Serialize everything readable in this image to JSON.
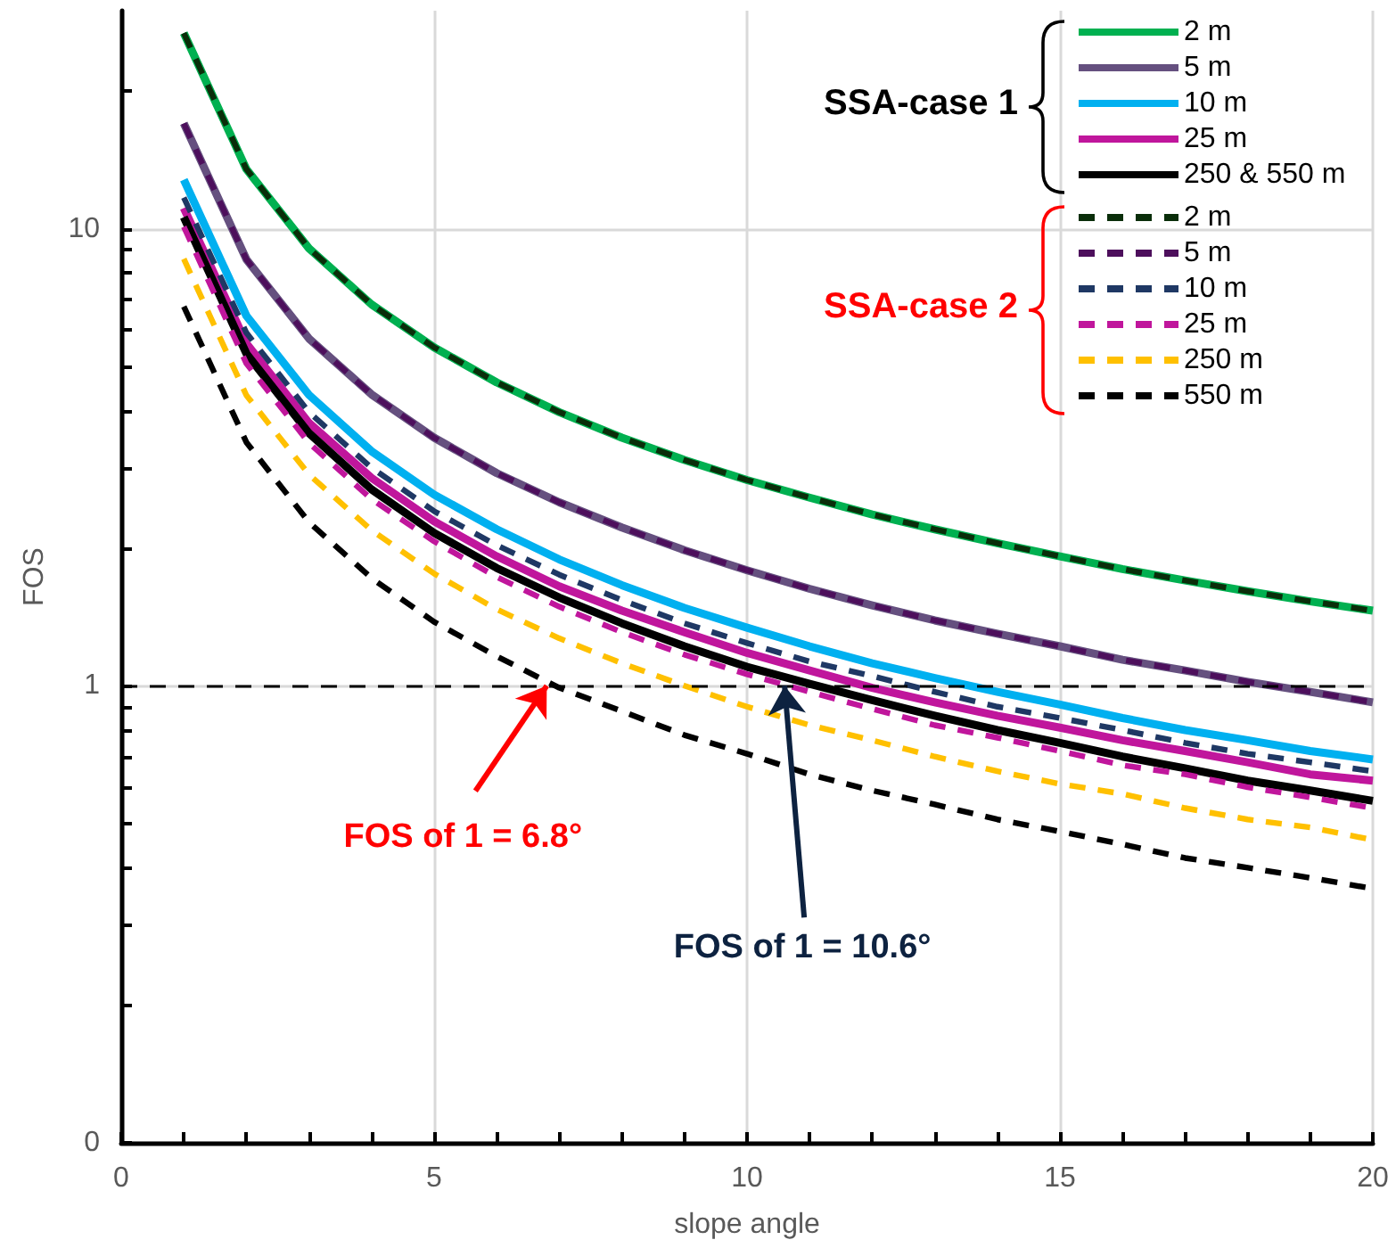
{
  "chart_data": {
    "type": "line",
    "xlabel": "slope angle",
    "ylabel": "FOS",
    "x": [
      1,
      2,
      3,
      4,
      5,
      6,
      7,
      8,
      9,
      10,
      11,
      12,
      13,
      14,
      15,
      16,
      17,
      18,
      19,
      20
    ],
    "series": [
      {
        "name": "2 m",
        "color": "#00b050",
        "line_style": "solid",
        "values": [
          26.8,
          13.5,
          9.06,
          6.83,
          5.5,
          4.61,
          3.97,
          3.49,
          3.12,
          2.82,
          2.58,
          2.37,
          2.2,
          2.05,
          1.92,
          1.8,
          1.7,
          1.61,
          1.53,
          1.46
        ]
      },
      {
        "name": "5 m",
        "color": "#65507f",
        "line_style": "solid",
        "values": [
          17,
          8.57,
          5.75,
          4.34,
          3.49,
          2.92,
          2.52,
          2.22,
          1.98,
          1.79,
          1.63,
          1.5,
          1.39,
          1.3,
          1.22,
          1.14,
          1.08,
          1.02,
          0.97,
          0.92
        ]
      },
      {
        "name": "10 m",
        "color": "#00b0f0",
        "line_style": "solid",
        "values": [
          12.8,
          6.45,
          4.33,
          3.26,
          2.62,
          2.2,
          1.89,
          1.66,
          1.48,
          1.34,
          1.22,
          1.12,
          1.04,
          0.97,
          0.91,
          0.85,
          0.8,
          0.76,
          0.72,
          0.69
        ]
      },
      {
        "name": "25 m",
        "color": "#c0169c",
        "line_style": "solid",
        "values": [
          11.1,
          5.61,
          3.76,
          2.85,
          2.29,
          1.92,
          1.65,
          1.46,
          1.31,
          1.18,
          1.08,
          0.99,
          0.92,
          0.86,
          0.81,
          0.76,
          0.72,
          0.68,
          0.64,
          0.62
        ]
      },
      {
        "name": "250 & 550 m",
        "color": "#000000",
        "line_style": "solid",
        "values": [
          10.6,
          5.33,
          3.57,
          2.69,
          2.16,
          1.81,
          1.56,
          1.37,
          1.22,
          1.1,
          1.01,
          0.93,
          0.86,
          0.8,
          0.75,
          0.7,
          0.66,
          0.62,
          0.59,
          0.56
        ]
      },
      {
        "name": "2 m",
        "color": "#0a2e0a",
        "line_style": "dashed",
        "values": [
          26.8,
          13.5,
          9.06,
          6.83,
          5.5,
          4.61,
          3.97,
          3.49,
          3.12,
          2.82,
          2.58,
          2.37,
          2.2,
          2.05,
          1.92,
          1.8,
          1.7,
          1.61,
          1.53,
          1.46
        ]
      },
      {
        "name": "5 m",
        "color": "#4d0f5c",
        "line_style": "dashed",
        "values": [
          17,
          8.57,
          5.75,
          4.34,
          3.49,
          2.92,
          2.52,
          2.22,
          1.98,
          1.79,
          1.63,
          1.5,
          1.39,
          1.3,
          1.22,
          1.14,
          1.08,
          1.02,
          0.97,
          0.92
        ]
      },
      {
        "name": "10 m",
        "color": "#1f3864",
        "line_style": "dashed",
        "values": [
          11.7,
          5.92,
          3.97,
          3,
          2.41,
          2.03,
          1.75,
          1.54,
          1.37,
          1.24,
          1.13,
          1.05,
          0.97,
          0.9,
          0.85,
          0.8,
          0.75,
          0.71,
          0.68,
          0.65
        ]
      },
      {
        "name": "25 m",
        "color": "#c0169c",
        "line_style": "dashed",
        "values": [
          10.1,
          5.07,
          3.4,
          2.56,
          2.07,
          1.73,
          1.49,
          1.31,
          1.17,
          1.06,
          0.97,
          0.89,
          0.82,
          0.77,
          0.72,
          0.67,
          0.64,
          0.6,
          0.57,
          0.54
        ]
      },
      {
        "name": "250 m",
        "color": "#ffc000",
        "line_style": "dashed",
        "values": [
          8.59,
          4.32,
          2.9,
          2.19,
          1.76,
          1.47,
          1.27,
          1.12,
          1,
          0.9,
          0.82,
          0.76,
          0.7,
          0.65,
          0.61,
          0.58,
          0.54,
          0.51,
          0.49,
          0.46
        ]
      },
      {
        "name": "550 m",
        "color": "#000000",
        "line_style": "dashed",
        "values": [
          6.76,
          3.41,
          2.28,
          1.72,
          1.38,
          1.16,
          0.99,
          0.88,
          0.78,
          0.71,
          0.64,
          0.59,
          0.55,
          0.51,
          0.48,
          0.45,
          0.42,
          0.4,
          0.38,
          0.36
        ]
      }
    ],
    "xlim": [
      0,
      20
    ],
    "xticks": [
      0,
      {
        "value": 1,
        "label": null
      },
      {
        "value": 2,
        "label": null
      },
      {
        "value": 3,
        "label": null
      },
      {
        "value": 4,
        "label": null
      },
      5,
      {
        "value": 6,
        "label": null
      },
      {
        "value": 7,
        "label": null
      },
      {
        "value": 8,
        "label": null
      },
      {
        "value": 9,
        "label": null
      },
      10,
      {
        "value": 11,
        "label": null
      },
      {
        "value": 12,
        "label": null
      },
      {
        "value": 13,
        "label": null
      },
      {
        "value": 14,
        "label": null
      },
      15,
      {
        "value": 16,
        "label": null
      },
      {
        "value": 17,
        "label": null
      },
      {
        "value": 18,
        "label": null
      },
      {
        "value": 19,
        "label": null
      },
      20
    ],
    "ylim": [
      0.1,
      30
    ],
    "yticks": [
      {
        "value": 0.1,
        "label": "0"
      },
      {
        "value": 0.2,
        "label": null
      },
      {
        "value": 0.3,
        "label": null
      },
      {
        "value": 0.4,
        "label": null
      },
      {
        "value": 0.5,
        "label": null
      },
      {
        "value": 0.6,
        "label": null
      },
      {
        "value": 0.7,
        "label": null
      },
      {
        "value": 0.8,
        "label": null
      },
      {
        "value": 0.9,
        "label": null
      },
      1,
      {
        "value": 2,
        "label": null
      },
      {
        "value": 3,
        "label": null
      },
      {
        "value": 4,
        "label": null
      },
      {
        "value": 5,
        "label": null
      },
      {
        "value": 6,
        "label": null
      },
      {
        "value": 7,
        "label": null
      },
      {
        "value": 8,
        "label": null
      },
      {
        "value": 9,
        "label": null
      },
      10,
      {
        "value": 20,
        "label": null
      }
    ],
    "log": "y",
    "grid": true,
    "legend": "top right",
    "marker": "none",
    "ref_lines": [
      {
        "axis": "y",
        "value": 1,
        "color": "#000000",
        "line_style": "dashed"
      }
    ],
    "annotations": [
      "SSA-case 1",
      "SSA-case 2",
      {
        "text": "FOS of 1 = 6.8°",
        "x": 6.8,
        "y": 1
      },
      {
        "text": "FOS of 1 = 10.6°",
        "x": 10.6,
        "y": 1
      }
    ]
  }
}
